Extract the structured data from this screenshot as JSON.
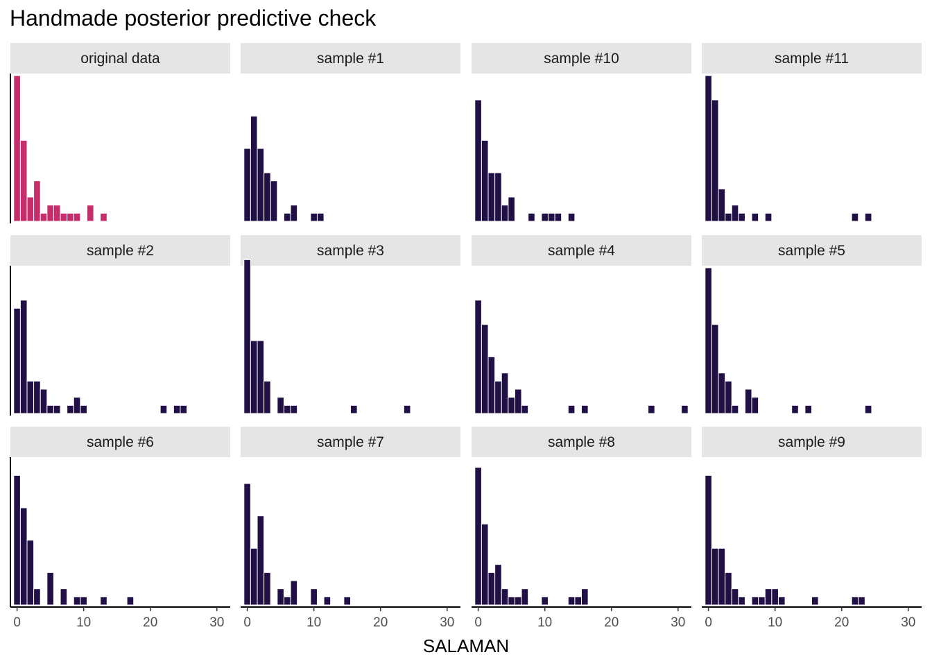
{
  "title": "Handmade posterior predictive check",
  "chart_data": {
    "type": "bar",
    "chart_kind": "faceted histogram",
    "title": "Handmade posterior predictive check",
    "xlabel": "SALAMAN",
    "ylabel": "",
    "xlim": [
      -1,
      32
    ],
    "ylim": [
      0,
      18
    ],
    "x_ticks": [
      0,
      10,
      20,
      30
    ],
    "y_axis_visible": false,
    "grid": false,
    "legend": "none",
    "bin_width": 1,
    "colors": {
      "original": "#C42E6A",
      "sample": "#211045",
      "strip": "#E5E5E5"
    },
    "facets": [
      {
        "label": "original data",
        "group": "original",
        "bins": [
          [
            0,
            18
          ],
          [
            1,
            10
          ],
          [
            2,
            3
          ],
          [
            3,
            5
          ],
          [
            4,
            1
          ],
          [
            5,
            2
          ],
          [
            6,
            2
          ],
          [
            7,
            1
          ],
          [
            8,
            1
          ],
          [
            9,
            1
          ],
          [
            11,
            2
          ],
          [
            13,
            1
          ]
        ]
      },
      {
        "label": "sample #1",
        "group": "sample",
        "bins": [
          [
            0,
            9
          ],
          [
            1,
            13
          ],
          [
            2,
            9
          ],
          [
            3,
            6
          ],
          [
            4,
            5
          ],
          [
            6,
            1
          ],
          [
            7,
            2
          ],
          [
            10,
            1
          ],
          [
            11,
            1
          ]
        ]
      },
      {
        "label": "sample #10",
        "group": "sample",
        "bins": [
          [
            0,
            15
          ],
          [
            1,
            10
          ],
          [
            2,
            6
          ],
          [
            3,
            6
          ],
          [
            4,
            2
          ],
          [
            5,
            3
          ],
          [
            8,
            1
          ],
          [
            10,
            1
          ],
          [
            11,
            1
          ],
          [
            12,
            1
          ],
          [
            14,
            1
          ]
        ]
      },
      {
        "label": "sample #11",
        "group": "sample",
        "bins": [
          [
            0,
            18
          ],
          [
            1,
            15
          ],
          [
            2,
            4
          ],
          [
            3,
            1
          ],
          [
            4,
            2
          ],
          [
            5,
            1
          ],
          [
            7,
            1
          ],
          [
            9,
            1
          ],
          [
            22,
            1
          ],
          [
            24,
            1
          ]
        ]
      },
      {
        "label": "sample #2",
        "group": "sample",
        "bins": [
          [
            0,
            13
          ],
          [
            1,
            14
          ],
          [
            2,
            4
          ],
          [
            3,
            4
          ],
          [
            4,
            3
          ],
          [
            5,
            1
          ],
          [
            6,
            1
          ],
          [
            8,
            1
          ],
          [
            9,
            2
          ],
          [
            10,
            1
          ],
          [
            22,
            1
          ],
          [
            24,
            1
          ],
          [
            25,
            1
          ]
        ]
      },
      {
        "label": "sample #3",
        "group": "sample",
        "bins": [
          [
            0,
            19
          ],
          [
            1,
            9
          ],
          [
            2,
            9
          ],
          [
            3,
            4
          ],
          [
            5,
            2
          ],
          [
            6,
            1
          ],
          [
            7,
            1
          ],
          [
            16,
            1
          ],
          [
            24,
            1
          ]
        ]
      },
      {
        "label": "sample #4",
        "group": "sample",
        "bins": [
          [
            0,
            14
          ],
          [
            1,
            11
          ],
          [
            2,
            7
          ],
          [
            3,
            4
          ],
          [
            4,
            5
          ],
          [
            5,
            2
          ],
          [
            6,
            3
          ],
          [
            7,
            1
          ],
          [
            14,
            1
          ],
          [
            16,
            1
          ],
          [
            26,
            1
          ],
          [
            31,
            1
          ]
        ]
      },
      {
        "label": "sample #5",
        "group": "sample",
        "bins": [
          [
            0,
            18
          ],
          [
            1,
            11
          ],
          [
            2,
            5
          ],
          [
            3,
            4
          ],
          [
            4,
            1
          ],
          [
            6,
            3
          ],
          [
            7,
            2
          ],
          [
            13,
            1
          ],
          [
            15,
            1
          ],
          [
            24,
            1
          ]
        ]
      },
      {
        "label": "sample #6",
        "group": "sample",
        "bins": [
          [
            0,
            16
          ],
          [
            1,
            12
          ],
          [
            2,
            8
          ],
          [
            3,
            2
          ],
          [
            5,
            4
          ],
          [
            7,
            2
          ],
          [
            9,
            1
          ],
          [
            10,
            1
          ],
          [
            13,
            1
          ],
          [
            17,
            1
          ]
        ]
      },
      {
        "label": "sample #7",
        "group": "sample",
        "bins": [
          [
            0,
            15
          ],
          [
            1,
            7
          ],
          [
            2,
            11
          ],
          [
            3,
            4
          ],
          [
            5,
            2
          ],
          [
            6,
            1
          ],
          [
            7,
            3
          ],
          [
            10,
            2
          ],
          [
            12,
            1
          ],
          [
            15,
            1
          ]
        ]
      },
      {
        "label": "sample #8",
        "group": "sample",
        "bins": [
          [
            0,
            17
          ],
          [
            1,
            10
          ],
          [
            2,
            4
          ],
          [
            3,
            5
          ],
          [
            4,
            2
          ],
          [
            5,
            1
          ],
          [
            6,
            1
          ],
          [
            7,
            2
          ],
          [
            10,
            1
          ],
          [
            14,
            1
          ],
          [
            15,
            1
          ],
          [
            16,
            2
          ]
        ]
      },
      {
        "label": "sample #9",
        "group": "sample",
        "bins": [
          [
            0,
            16
          ],
          [
            1,
            7
          ],
          [
            2,
            7
          ],
          [
            3,
            4
          ],
          [
            4,
            2
          ],
          [
            5,
            1
          ],
          [
            7,
            1
          ],
          [
            8,
            1
          ],
          [
            9,
            2
          ],
          [
            10,
            2
          ],
          [
            11,
            1
          ],
          [
            16,
            1
          ],
          [
            22,
            1
          ],
          [
            23,
            1
          ]
        ]
      }
    ]
  }
}
